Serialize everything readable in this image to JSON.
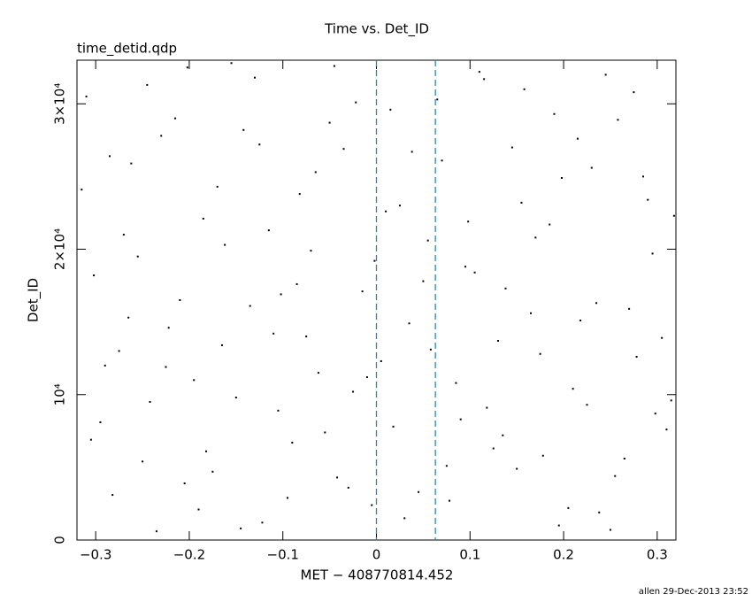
{
  "chart_data": {
    "type": "scatter",
    "title": "Time vs. Det_ID",
    "subtitle": "time_detid.qdp",
    "x_label": "MET − 408770814.452",
    "y_label": "Det_ID",
    "footer": "allen 29-Dec-2013 23:52",
    "xlim": [
      -0.32,
      0.32
    ],
    "ylim": [
      0,
      33000
    ],
    "xticks": [
      {
        "value": -0.3,
        "label": "−0.3"
      },
      {
        "value": -0.2,
        "label": "−0.2"
      },
      {
        "value": -0.1,
        "label": "−0.1"
      },
      0,
      0.1,
      0.2,
      0.3
    ],
    "yticks": [
      0,
      {
        "value": 10000,
        "label": "10⁴"
      },
      {
        "value": 20000,
        "label": "2×10⁴"
      },
      {
        "value": 30000,
        "label": "3×10⁴"
      }
    ],
    "vlines": [
      0,
      0.063
    ],
    "vline_color": "#2b86b0",
    "series": [
      {
        "color": "#000000",
        "x": [
          -0.31,
          -0.29,
          -0.27,
          -0.25,
          -0.23,
          -0.21,
          -0.19,
          -0.17,
          -0.15,
          -0.13,
          -0.11,
          -0.09,
          -0.07,
          -0.05,
          -0.03,
          -0.01,
          0.01,
          0.03,
          0.05,
          0.07,
          0.09,
          0.11,
          0.13,
          0.15,
          0.17,
          0.19,
          0.21,
          0.23,
          0.25,
          0.27,
          0.29,
          0.31,
          -0.302,
          -0.282,
          -0.262,
          -0.242,
          -0.222,
          -0.202,
          -0.182,
          -0.162,
          -0.142,
          -0.122,
          -0.102,
          -0.082,
          -0.062,
          -0.042,
          -0.022,
          -0.002,
          0.018,
          0.038,
          0.058,
          0.078,
          0.098,
          0.118,
          0.138,
          0.158,
          0.178,
          0.198,
          0.218,
          0.238,
          0.258,
          0.278,
          0.298,
          0.318,
          -0.305,
          -0.285,
          -0.265,
          -0.245,
          -0.225,
          -0.205,
          -0.185,
          -0.165,
          -0.145,
          -0.125,
          -0.105,
          -0.085,
          -0.065,
          -0.045,
          -0.025,
          -0.005,
          0.015,
          0.035,
          0.055,
          0.075,
          0.095,
          0.115,
          0.135,
          0.155,
          0.175,
          0.195,
          0.215,
          0.235,
          0.255,
          0.275,
          0.295,
          0.315,
          -0.315,
          -0.295,
          -0.275,
          -0.255,
          -0.235,
          -0.215,
          -0.195,
          -0.175,
          -0.155,
          -0.135,
          -0.115,
          -0.095,
          -0.075,
          -0.055,
          -0.035,
          -0.015,
          0.005,
          0.025,
          0.045,
          0.065,
          0.085,
          0.105,
          0.125,
          0.145,
          0.165,
          0.185,
          0.205,
          0.225,
          0.245,
          0.265,
          0.285,
          0.305
        ],
        "values": [
          30500,
          12000,
          21000,
          5400,
          27800,
          16500,
          2100,
          24300,
          9800,
          31800,
          14200,
          6700,
          19900,
          28700,
          3600,
          11200,
          22600,
          1500,
          17800,
          26100,
          8300,
          32200,
          13700,
          4900,
          20800,
          29300,
          10400,
          25600,
          700,
          15900,
          23400,
          7600,
          18200,
          3100,
          25900,
          9500,
          14600,
          32500,
          6100,
          20300,
          28200,
          1200,
          16900,
          23800,
          11500,
          4300,
          30100,
          19200,
          7800,
          26700,
          13100,
          2700,
          21900,
          9100,
          17300,
          31000,
          5800,
          24900,
          15100,
          1900,
          28900,
          12600,
          8700,
          22300,
          6900,
          26400,
          15300,
          31300,
          11900,
          3900,
          22100,
          13400,
          800,
          27200,
          8900,
          17600,
          25300,
          32600,
          10200,
          2400,
          29600,
          14900,
          20600,
          5100,
          18800,
          31700,
          7200,
          23200,
          12800,
          1000,
          27600,
          16300,
          4400,
          30800,
          19700,
          9600,
          24100,
          8100,
          13000,
          19500,
          600,
          29000,
          11000,
          4700,
          32800,
          16100,
          21300,
          2900,
          14000,
          7400,
          26900,
          17100,
          12300,
          23000,
          3300,
          30300,
          10800,
          18400,
          6300,
          27000,
          15600,
          21700,
          2200,
          9300,
          32000,
          5600,
          25000,
          13900
        ]
      }
    ]
  }
}
